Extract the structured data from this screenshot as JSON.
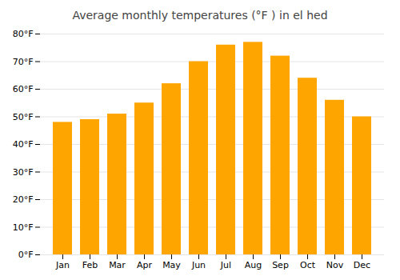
{
  "chart_data": {
    "type": "bar",
    "title": "Average monthly temperatures (°F ) in el hed",
    "categories": [
      "Jan",
      "Feb",
      "Mar",
      "Apr",
      "May",
      "Jun",
      "Jul",
      "Aug",
      "Sep",
      "Oct",
      "Nov",
      "Dec"
    ],
    "values": [
      48,
      49,
      51,
      55,
      62,
      70,
      76,
      77,
      72,
      64,
      56,
      50
    ],
    "color": "#FFA500",
    "ylim": [
      0,
      80
    ],
    "yticks": [
      {
        "value": 0,
        "label": "0°F"
      },
      {
        "value": 10,
        "label": "10°F"
      },
      {
        "value": 20,
        "label": "20°F"
      },
      {
        "value": 30,
        "label": "30°F"
      },
      {
        "value": 40,
        "label": "40°F"
      },
      {
        "value": 50,
        "label": "50°F"
      },
      {
        "value": 60,
        "label": "60°F"
      },
      {
        "value": 70,
        "label": "70°F"
      },
      {
        "value": 80,
        "label": "80°F"
      }
    ],
    "grid": true
  }
}
